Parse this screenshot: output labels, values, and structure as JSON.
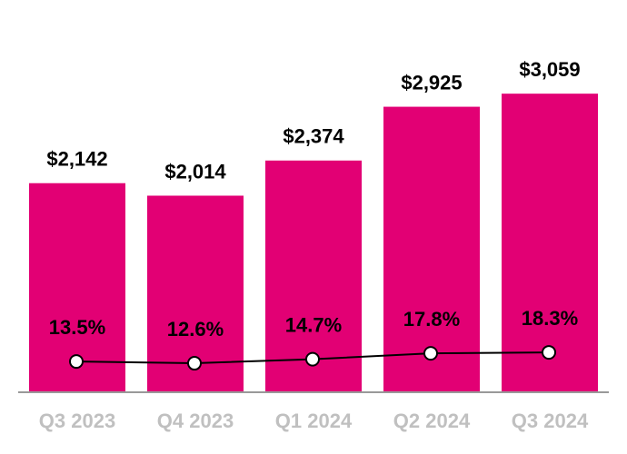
{
  "chart_data": {
    "type": "bar",
    "categories": [
      "Q3 2023",
      "Q4 2023",
      "Q1 2024",
      "Q2 2024",
      "Q3 2024"
    ],
    "series": [
      {
        "type": "bar",
        "color": "#e20074",
        "values": [
          2142,
          2014,
          2374,
          2925,
          3059
        ],
        "value_labels": [
          "$2,142",
          "$2,014",
          "$2,374",
          "$2,925",
          "$3,059"
        ]
      },
      {
        "type": "line",
        "color": "#000000",
        "values": [
          13.5,
          12.6,
          14.7,
          17.8,
          18.3
        ],
        "value_labels": [
          "13.5%",
          "12.6%",
          "14.7%",
          "17.8%",
          "18.3%"
        ]
      }
    ]
  }
}
